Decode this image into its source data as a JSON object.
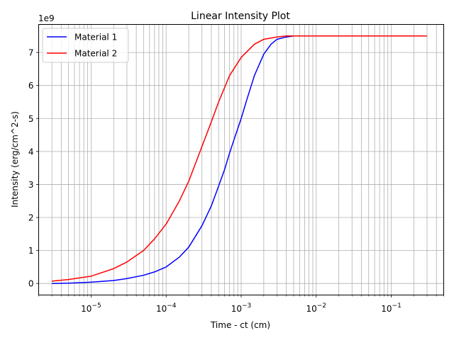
{
  "chart_data": {
    "type": "line",
    "title": "Linear Intensity Plot",
    "xlabel": "Time - ct (cm)",
    "ylabel": "Intensity (erg/cm^2-s)",
    "y_offset_label": "1e9",
    "xscale": "log",
    "xlim": [
      2e-06,
      0.5
    ],
    "ylim": [
      -0.35,
      7.85
    ],
    "y_ticks": [
      0,
      1,
      2,
      3,
      4,
      5,
      6,
      7
    ],
    "x_ticks": [
      {
        "value": 1e-05,
        "base": "10",
        "exp": "−5"
      },
      {
        "value": 0.0001,
        "base": "10",
        "exp": "−4"
      },
      {
        "value": 0.001,
        "base": "10",
        "exp": "−3"
      },
      {
        "value": 0.01,
        "base": "10",
        "exp": "−2"
      },
      {
        "value": 0.1,
        "base": "10",
        "exp": "−1"
      }
    ],
    "grid": true,
    "legend_position": "upper left",
    "series": [
      {
        "name": "Material 1",
        "color": "#0000ff",
        "x": [
          3e-06,
          5e-06,
          1e-05,
          2e-05,
          3e-05,
          5e-05,
          7e-05,
          0.0001,
          0.00015,
          0.0002,
          0.0003,
          0.0004,
          0.0005,
          0.0006,
          0.0007,
          0.0008,
          0.001,
          0.0012,
          0.0015,
          0.002,
          0.0025,
          0.003,
          0.004,
          0.005,
          0.007,
          0.01,
          0.03,
          0.1,
          0.3
        ],
        "y": [
          0.0,
          0.01,
          0.04,
          0.09,
          0.15,
          0.25,
          0.35,
          0.5,
          0.8,
          1.1,
          1.75,
          2.35,
          2.95,
          3.45,
          3.95,
          4.35,
          5.0,
          5.6,
          6.3,
          6.95,
          7.25,
          7.4,
          7.47,
          7.5,
          7.5,
          7.5,
          7.5,
          7.5,
          7.5
        ]
      },
      {
        "name": "Material 2",
        "color": "#ff0000",
        "x": [
          3e-06,
          5e-06,
          1e-05,
          2e-05,
          3e-05,
          5e-05,
          7e-05,
          0.0001,
          0.00015,
          0.0002,
          0.0003,
          0.0004,
          0.0005,
          0.0007,
          0.001,
          0.0015,
          0.002,
          0.003,
          0.004,
          0.005,
          0.007,
          0.01,
          0.03,
          0.1,
          0.3
        ],
        "y": [
          0.07,
          0.12,
          0.22,
          0.45,
          0.65,
          1.0,
          1.35,
          1.8,
          2.5,
          3.1,
          4.15,
          4.9,
          5.5,
          6.3,
          6.85,
          7.25,
          7.4,
          7.47,
          7.5,
          7.5,
          7.5,
          7.5,
          7.5,
          7.5,
          7.5
        ]
      }
    ]
  }
}
